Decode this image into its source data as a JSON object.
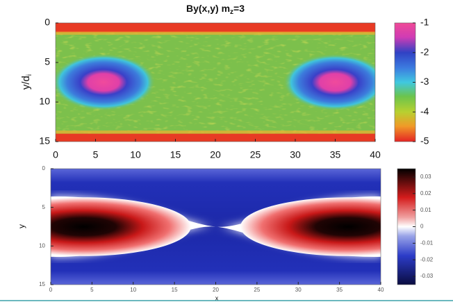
{
  "chart_data": [
    {
      "type": "heatmap",
      "title": {
        "text": "By(x,y) m",
        "sub": "z",
        "rest": "=3"
      },
      "y_label": {
        "text": "y/d",
        "sub": "i"
      },
      "xlim": [
        0,
        40
      ],
      "ylim": [
        0,
        15
      ],
      "y_reversed": true,
      "xticks": [
        0,
        5,
        10,
        15,
        20,
        25,
        30,
        35,
        40
      ],
      "yticks": [
        0,
        5,
        10,
        15
      ],
      "clim": [
        -5,
        -1
      ],
      "cticks": [
        -1,
        -2,
        -3,
        -4,
        -5
      ]
    },
    {
      "type": "heatmap",
      "x_label": "x",
      "y_label": "y",
      "xlim": [
        0,
        40
      ],
      "ylim": [
        0,
        15
      ],
      "y_reversed": true,
      "xticks": [
        0,
        5,
        10,
        15,
        20,
        25,
        30,
        35,
        40
      ],
      "yticks": [
        0,
        5,
        10,
        15
      ],
      "clim": [
        -0.035,
        0.035
      ],
      "cticks": [
        0.03,
        0.02,
        0.01,
        0,
        -0.01,
        -0.02,
        -0.03
      ]
    }
  ]
}
